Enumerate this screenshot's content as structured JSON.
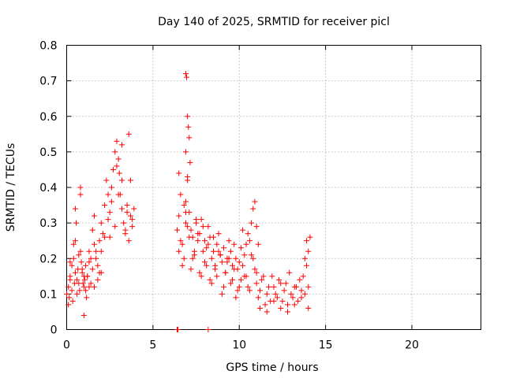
{
  "chart_data": {
    "type": "scatter",
    "title": "Day 140 of 2025, SRMTID for receiver picl",
    "xlabel": "GPS time / hours",
    "ylabel": "SRMTID / TECUs",
    "xlim": [
      0,
      24
    ],
    "ylim": [
      0,
      0.8
    ],
    "xticks": [
      0,
      5,
      10,
      15,
      20
    ],
    "xtick_labels": [
      "0",
      "5",
      "10",
      "15",
      "20"
    ],
    "yticks": [
      0,
      0.1,
      0.2,
      0.3,
      0.4,
      0.5,
      0.6,
      0.7,
      0.8
    ],
    "ytick_labels": [
      "0",
      "0.1",
      "0.2",
      "0.3",
      "0.4",
      "0.5",
      "0.6",
      "0.7",
      "0.8"
    ],
    "grid": true,
    "marker": "+",
    "color": "#ff0000",
    "series": [
      {
        "name": "SRMTID",
        "x": [
          0.0,
          0.1,
          0.15,
          0.2,
          0.3,
          0.35,
          0.4,
          0.45,
          0.5,
          0.55,
          0.6,
          0.65,
          0.7,
          0.75,
          0.8,
          0.85,
          0.9,
          0.95,
          1.0,
          1.05,
          1.1,
          1.15,
          1.2,
          1.3,
          1.4,
          1.5,
          1.6,
          1.7,
          1.8,
          1.9,
          2.0,
          2.1,
          2.2,
          2.3,
          2.4,
          2.5,
          2.6,
          2.7,
          2.8,
          2.9,
          3.0,
          3.05,
          3.1,
          3.2,
          3.3,
          3.4,
          3.5,
          3.6,
          3.7,
          3.8,
          3.9,
          0.1,
          0.2,
          0.3,
          0.4,
          0.5,
          0.6,
          0.7,
          0.8,
          0.9,
          1.0,
          1.1,
          1.2,
          1.3,
          1.4,
          1.5,
          1.6,
          1.7,
          1.8,
          1.9,
          2.0,
          2.2,
          2.4,
          2.6,
          2.8,
          3.0,
          3.2,
          3.4,
          3.6,
          3.8,
          0.2,
          0.5,
          0.8,
          1.0,
          1.3,
          1.6,
          2.0,
          2.5,
          2.9,
          3.2,
          3.5,
          3.7,
          6.4,
          6.5,
          6.6,
          6.7,
          6.8,
          6.9,
          7.0,
          7.1,
          7.2,
          7.3,
          7.4,
          7.5,
          7.6,
          7.7,
          7.8,
          7.9,
          8.0,
          8.1,
          8.2,
          8.3,
          8.4,
          8.5,
          8.6,
          8.7,
          8.8,
          8.9,
          9.0,
          9.1,
          9.2,
          9.3,
          9.4,
          9.5,
          9.6,
          9.7,
          9.8,
          9.9,
          10.0,
          10.1,
          10.2,
          10.3,
          10.4,
          10.5,
          10.6,
          10.7,
          10.8,
          10.9,
          11.0,
          11.1,
          6.5,
          6.7,
          6.9,
          7.1,
          7.3,
          7.5,
          7.7,
          7.9,
          8.1,
          8.3,
          8.5,
          8.7,
          8.9,
          9.1,
          9.3,
          9.5,
          9.7,
          9.9,
          10.1,
          10.3,
          10.5,
          10.7,
          10.9,
          6.5,
          6.6,
          6.8,
          6.9,
          7.0,
          7.2,
          7.4,
          7.6,
          7.8,
          8.0,
          8.2,
          8.4,
          8.6,
          8.8,
          9.0,
          9.2,
          9.4,
          9.6,
          9.8,
          10.0,
          10.2,
          10.4,
          10.6,
          10.8,
          11.0,
          6.9,
          6.95,
          7.0,
          7.05,
          7.1,
          7.15,
          6.9,
          7.0,
          11.0,
          11.2,
          11.4,
          11.6,
          11.8,
          12.0,
          12.2,
          12.4,
          12.6,
          12.8,
          13.0,
          13.2,
          13.4,
          13.6,
          13.8,
          14.0,
          11.1,
          11.3,
          11.5,
          11.7,
          11.9,
          12.1,
          12.3,
          12.5,
          12.7,
          12.9,
          13.1,
          13.3,
          13.5,
          13.7,
          13.9,
          11.2,
          11.6,
          12.0,
          12.4,
          12.8,
          13.2,
          13.6,
          14.0,
          13.8,
          13.9,
          14.0,
          14.1,
          6.4,
          6.45,
          8.2
        ],
        "y": [
          0.1,
          0.12,
          0.09,
          0.15,
          0.18,
          0.08,
          0.2,
          0.13,
          0.25,
          0.3,
          0.14,
          0.17,
          0.21,
          0.11,
          0.38,
          0.19,
          0.16,
          0.13,
          0.12,
          0.14,
          0.18,
          0.09,
          0.15,
          0.12,
          0.2,
          0.28,
          0.32,
          0.22,
          0.18,
          0.25,
          0.3,
          0.27,
          0.35,
          0.42,
          0.38,
          0.33,
          0.4,
          0.45,
          0.5,
          0.53,
          0.48,
          0.44,
          0.38,
          0.42,
          0.3,
          0.28,
          0.35,
          0.55,
          0.32,
          0.29,
          0.34,
          0.07,
          0.14,
          0.11,
          0.24,
          0.16,
          0.1,
          0.13,
          0.22,
          0.17,
          0.04,
          0.11,
          0.15,
          0.19,
          0.13,
          0.17,
          0.24,
          0.2,
          0.14,
          0.16,
          0.22,
          0.26,
          0.31,
          0.36,
          0.29,
          0.38,
          0.34,
          0.27,
          0.25,
          0.31,
          0.19,
          0.34,
          0.4,
          0.15,
          0.22,
          0.12,
          0.16,
          0.26,
          0.46,
          0.52,
          0.33,
          0.42,
          0.28,
          0.44,
          0.38,
          0.24,
          0.35,
          0.3,
          0.42,
          0.33,
          0.28,
          0.26,
          0.21,
          0.3,
          0.25,
          0.27,
          0.31,
          0.22,
          0.25,
          0.18,
          0.29,
          0.26,
          0.2,
          0.22,
          0.17,
          0.24,
          0.27,
          0.21,
          0.19,
          0.23,
          0.16,
          0.2,
          0.25,
          0.22,
          0.18,
          0.24,
          0.2,
          0.17,
          0.19,
          0.23,
          0.28,
          0.21,
          0.24,
          0.27,
          0.25,
          0.3,
          0.34,
          0.36,
          0.29,
          0.24,
          0.22,
          0.18,
          0.33,
          0.26,
          0.2,
          0.31,
          0.16,
          0.29,
          0.23,
          0.14,
          0.26,
          0.15,
          0.21,
          0.12,
          0.19,
          0.13,
          0.17,
          0.11,
          0.14,
          0.15,
          0.12,
          0.21,
          0.17,
          0.32,
          0.25,
          0.2,
          0.36,
          0.29,
          0.17,
          0.22,
          0.27,
          0.15,
          0.19,
          0.24,
          0.13,
          0.18,
          0.22,
          0.1,
          0.16,
          0.2,
          0.14,
          0.09,
          0.12,
          0.18,
          0.15,
          0.11,
          0.2,
          0.16,
          0.72,
          0.71,
          0.6,
          0.57,
          0.54,
          0.47,
          0.5,
          0.43,
          0.13,
          0.11,
          0.15,
          0.1,
          0.08,
          0.12,
          0.09,
          0.13,
          0.11,
          0.07,
          0.1,
          0.12,
          0.08,
          0.11,
          0.1,
          0.12,
          0.09,
          0.14,
          0.07,
          0.12,
          0.15,
          0.1,
          0.14,
          0.08,
          0.13,
          0.16,
          0.09,
          0.12,
          0.14,
          0.15,
          0.18,
          0.06,
          0.05,
          0.08,
          0.06,
          0.05,
          0.07,
          0.09,
          0.06,
          0.2,
          0.25,
          0.22,
          0.26,
          0.0,
          0.0,
          0.0
        ]
      }
    ]
  }
}
